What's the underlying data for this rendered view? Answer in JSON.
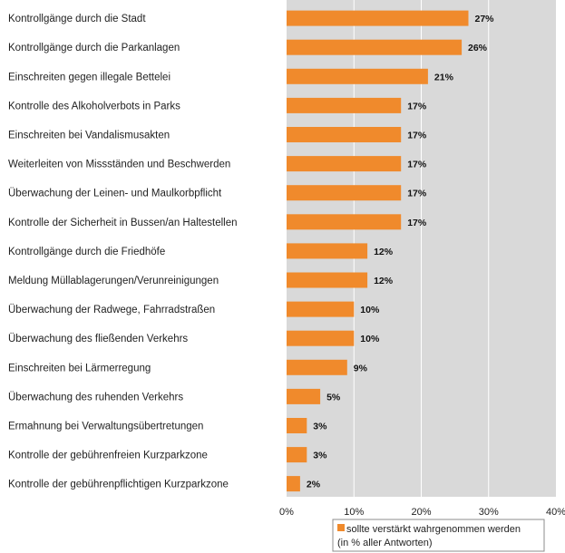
{
  "chart_data": {
    "type": "bar",
    "orientation": "horizontal",
    "categories": [
      "Kontrollgänge durch die Stadt",
      "Kontrollgänge durch die Parkanlagen",
      "Einschreiten gegen illegale Bettelei",
      "Kontrolle des Alkoholverbots in Parks",
      "Einschreiten bei Vandalismusakten",
      "Weiterleiten von Missständen und Beschwerden",
      "Überwachung der Leinen- und Maulkorbpflicht",
      "Kontrolle der Sicherheit in Bussen/an Haltestellen",
      "Kontrollgänge durch die Friedhöfe",
      "Meldung Müllablagerungen/Verunreinigungen",
      "Überwachung der Radwege, Fahrradstraßen",
      "Überwachung des fließenden Verkehrs",
      "Einschreiten bei Lärmerregung",
      "Überwachung des ruhenden Verkehrs",
      "Ermahnung bei Verwaltungsübertretungen",
      "Kontrolle der gebührenfreien Kurzparkzone",
      "Kontrolle der gebührenpflichtigen Kurzparkzone"
    ],
    "series": [
      {
        "name": "sollte verstärkt wahrgenommen werden (in % aller Antworten)",
        "legend_lines": [
          "sollte verstärkt wahrgenommen werden",
          "(in % aller Antworten)"
        ],
        "values": [
          27,
          26,
          21,
          17,
          17,
          17,
          17,
          17,
          12,
          12,
          10,
          10,
          9,
          5,
          3,
          3,
          2
        ],
        "data_labels": [
          "27%",
          "26%",
          "21%",
          "17%",
          "17%",
          "17%",
          "17%",
          "17%",
          "12%",
          "12%",
          "10%",
          "10%",
          "9%",
          "5%",
          "3%",
          "3%",
          "2%"
        ]
      }
    ],
    "xlim": [
      0,
      40
    ],
    "xticks": [
      0,
      10,
      20,
      30,
      40
    ],
    "xtick_labels": [
      "0%",
      "10%",
      "20%",
      "30%",
      "40%"
    ],
    "title": "",
    "xlabel": "",
    "ylabel": "",
    "grid": true,
    "legend_position": "bottom",
    "colors": {
      "bar": "#f08a2c",
      "plot_background": "#d9d9d9",
      "gridline": "#ffffff"
    }
  }
}
